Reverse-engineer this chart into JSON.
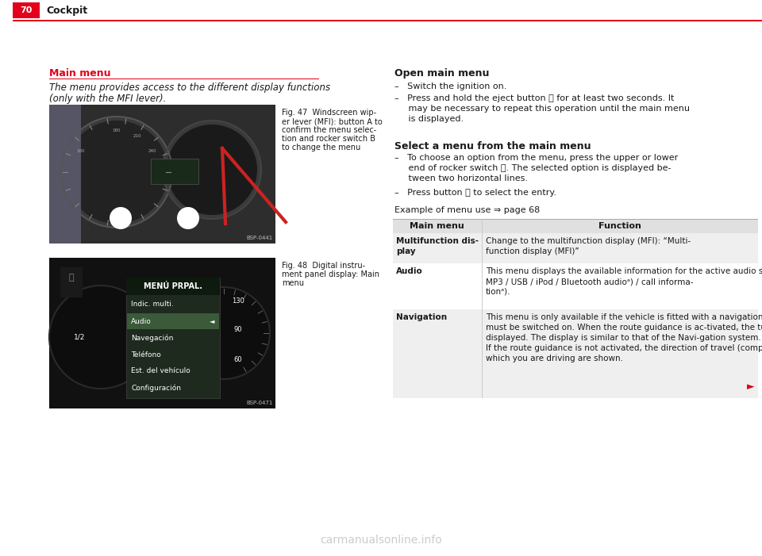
{
  "page_number": "70",
  "page_title": "Cockpit",
  "header_red_color": "#e2001a",
  "header_text_color": "#ffffff",
  "bg_color": "#ffffff",
  "text_color": "#1a1a1a",
  "red_line_color": "#e2001a",
  "section_title_left": "Main menu",
  "intro_text_line1": "The menu provides access to the different display functions",
  "intro_text_line2": "(only with the MFI lever).",
  "fig47_caption_lines": [
    "Fig. 47  Windscreen wip-",
    "er lever (MFI): button A to",
    "confirm the menu selec-",
    "tion and rocker switch B",
    "to change the menu"
  ],
  "fig48_caption_lines": [
    "Fig. 48  Digital instru-",
    "ment panel display: Main",
    "menu"
  ],
  "right_section_title1": "Open main menu",
  "right_section_title2": "Select a menu from the main menu",
  "example_text": "Example of menu use ⇒ page 68",
  "table_col1_header": "Main menu",
  "table_col2_header": "Function",
  "table_row1_col1_lines": [
    "Multifunction dis-",
    "play"
  ],
  "table_row1_col2_lines": [
    "Change to the multifunction display (MFI): “Multi-",
    "function display (MFI)”"
  ],
  "table_row1_shaded": true,
  "table_row2_col1_lines": [
    "Audio"
  ],
  "table_row2_col2_lines": [
    "This menu displays the available information for the active audio source (radio station, CD audio track /",
    "MP3 / USB / iPod / Bluetooth audioᵃ) / call informa-",
    "tionᵃ)."
  ],
  "table_row2_shaded": false,
  "table_row3_col1_lines": [
    "Navigation"
  ],
  "table_row3_col2_lines": [
    "This menu is only available if the vehicle is fitted with a navigation system. The navigation system",
    "must be switched on. When the route guidance is ac-tivated, the turning arrows and proximity bars are",
    "displayed. The display is similar to that of the Navi-gation system.",
    "If the route guidance is not activated, the direction of travel (compass) and the name of the street along",
    "which you are driving are shown."
  ],
  "table_row3_shaded": true,
  "watermark": "carmanualsonline.info",
  "arrow_right_color": "#e2001a",
  "fig47_code": "BSP-0441",
  "fig48_code": "BSP-0471",
  "shaded_color": "#efefef",
  "header_row_color": "#e0e0e0"
}
